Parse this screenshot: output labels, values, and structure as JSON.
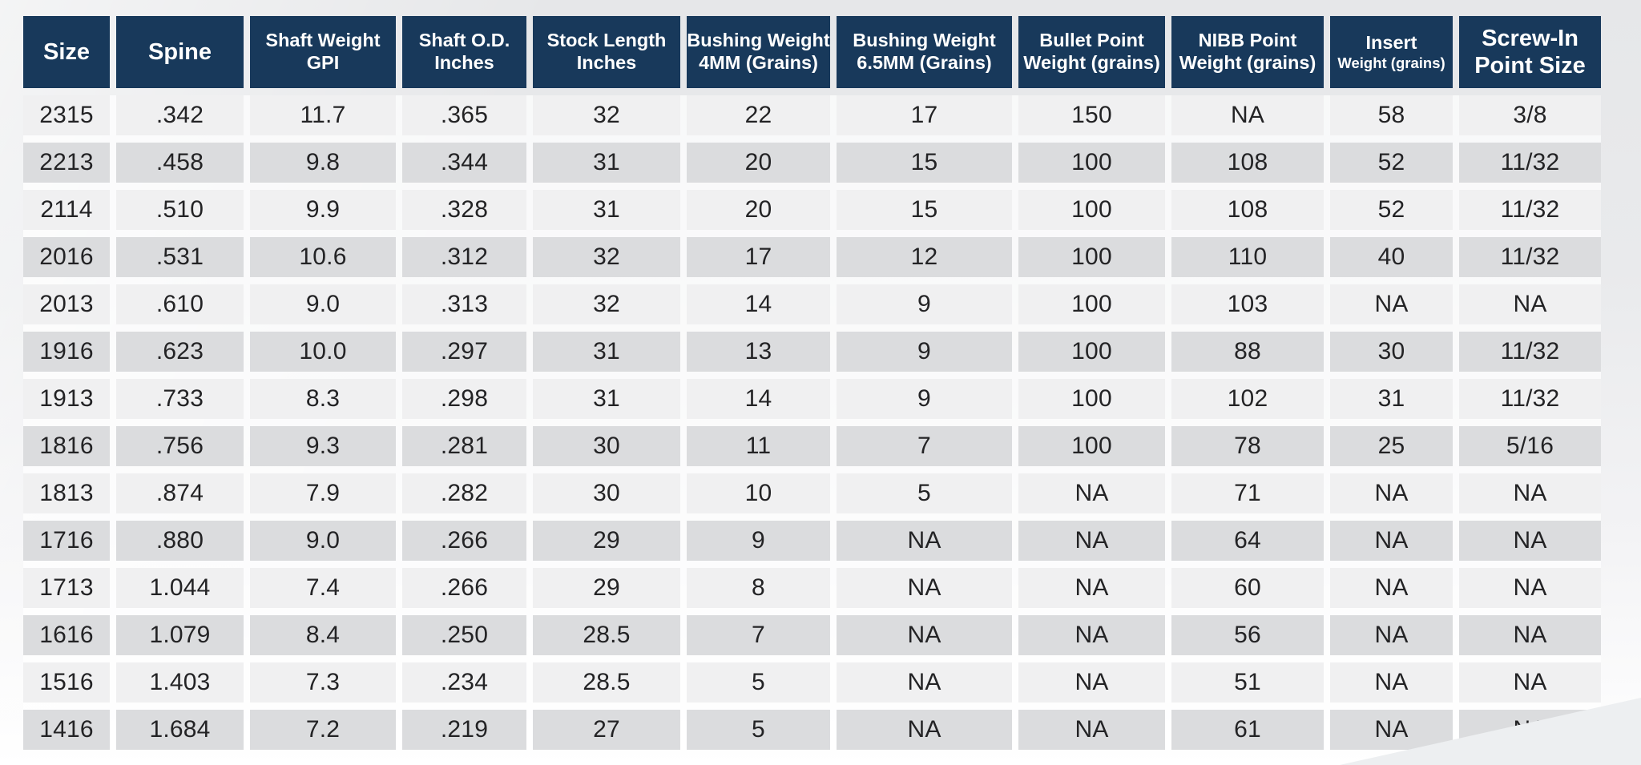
{
  "colors": {
    "header_bg": "#18395b",
    "header_text": "#ffffff",
    "row_light": "#f0f0f1",
    "row_dark": "#dbdcde",
    "cell_text": "#232325",
    "page_bg_top": "#e6e7e9",
    "page_bg_bottom": "#ffffff",
    "corner_wedge": "#edeff1"
  },
  "chart_data": {
    "type": "table",
    "columns": [
      {
        "line1": "Size",
        "line2": ""
      },
      {
        "line1": "Spine",
        "line2": ""
      },
      {
        "line1": "Shaft Weight",
        "line2": "GPI"
      },
      {
        "line1": "Shaft O.D.",
        "line2": "Inches"
      },
      {
        "line1": "Stock Length",
        "line2": "Inches"
      },
      {
        "line1": "Bushing Weight",
        "line2": "4MM (Grains)"
      },
      {
        "line1": "Bushing Weight",
        "line2": "6.5MM (Grains)"
      },
      {
        "line1": "Bullet Point",
        "line2": "Weight (grains)"
      },
      {
        "line1": "NIBB Point",
        "line2": "Weight (grains)"
      },
      {
        "line1": "Insert",
        "line2": "Weight (grains)",
        "line2_small": true
      },
      {
        "line1": "Screw-In",
        "line2": "Point Size"
      }
    ],
    "rows": [
      [
        "2315",
        ".342",
        "11.7",
        ".365",
        "32",
        "22",
        "17",
        "150",
        "NA",
        "58",
        "3/8"
      ],
      [
        "2213",
        ".458",
        "9.8",
        ".344",
        "31",
        "20",
        "15",
        "100",
        "108",
        "52",
        "11/32"
      ],
      [
        "2114",
        ".510",
        "9.9",
        ".328",
        "31",
        "20",
        "15",
        "100",
        "108",
        "52",
        "11/32"
      ],
      [
        "2016",
        ".531",
        "10.6",
        ".312",
        "32",
        "17",
        "12",
        "100",
        "110",
        "40",
        "11/32"
      ],
      [
        "2013",
        ".610",
        "9.0",
        ".313",
        "32",
        "14",
        "9",
        "100",
        "103",
        "NA",
        "NA"
      ],
      [
        "1916",
        ".623",
        "10.0",
        ".297",
        "31",
        "13",
        "9",
        "100",
        "88",
        "30",
        "11/32"
      ],
      [
        "1913",
        ".733",
        "8.3",
        ".298",
        "31",
        "14",
        "9",
        "100",
        "102",
        "31",
        "11/32"
      ],
      [
        "1816",
        ".756",
        "9.3",
        ".281",
        "30",
        "11",
        "7",
        "100",
        "78",
        "25",
        "5/16"
      ],
      [
        "1813",
        ".874",
        "7.9",
        ".282",
        "30",
        "10",
        "5",
        "NA",
        "71",
        "NA",
        "NA"
      ],
      [
        "1716",
        ".880",
        "9.0",
        ".266",
        "29",
        "9",
        "NA",
        "NA",
        "64",
        "NA",
        "NA"
      ],
      [
        "1713",
        "1.044",
        "7.4",
        ".266",
        "29",
        "8",
        "NA",
        "NA",
        "60",
        "NA",
        "NA"
      ],
      [
        "1616",
        "1.079",
        "8.4",
        ".250",
        "28.5",
        "7",
        "NA",
        "NA",
        "56",
        "NA",
        "NA"
      ],
      [
        "1516",
        "1.403",
        "7.3",
        ".234",
        "28.5",
        "5",
        "NA",
        "NA",
        "51",
        "NA",
        "NA"
      ],
      [
        "1416",
        "1.684",
        "7.2",
        ".219",
        "27",
        "5",
        "NA",
        "NA",
        "61",
        "NA",
        "NA"
      ]
    ]
  }
}
